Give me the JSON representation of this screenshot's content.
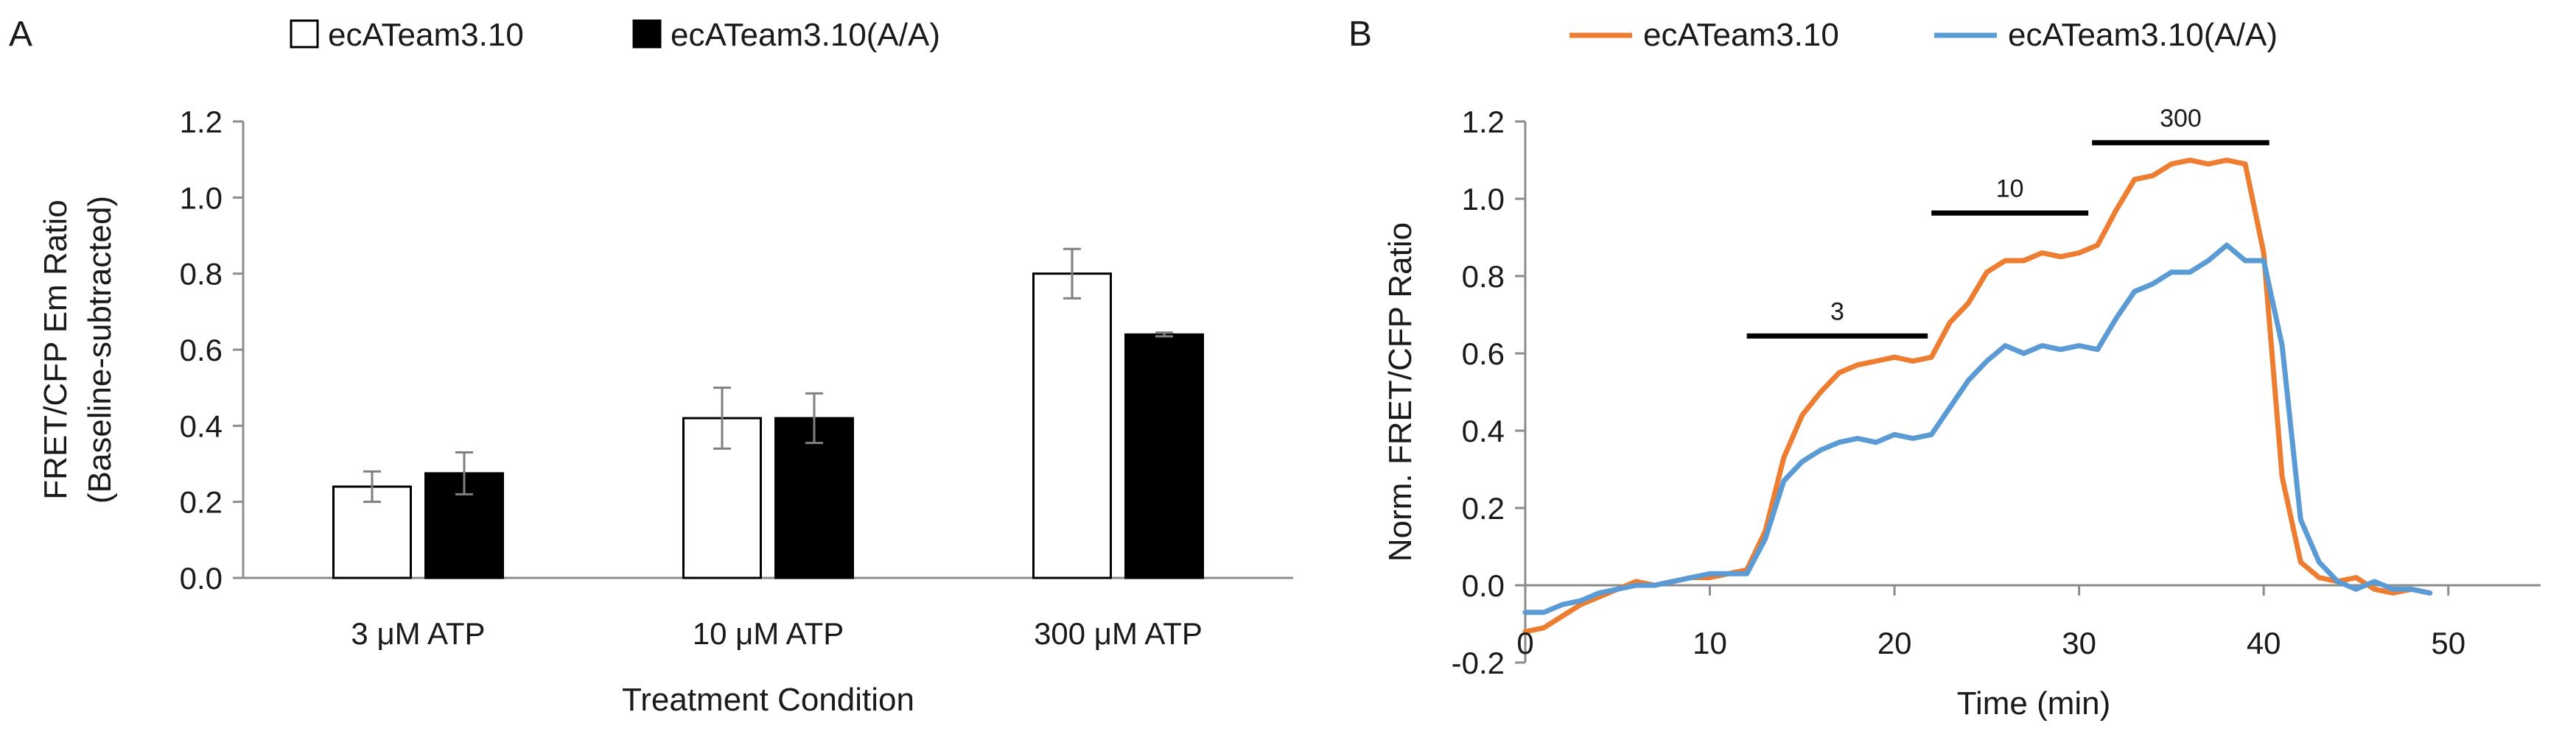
{
  "panels": {
    "a_label": "A",
    "b_label": "B"
  },
  "chart_data": [
    {
      "type": "bar",
      "categories": [
        "3 μM ATP",
        "10 μM ATP",
        "300 μM ATP"
      ],
      "series": [
        {
          "name": "ecATeam3.10",
          "values": [
            0.24,
            0.42,
            0.8
          ],
          "errors": [
            0.04,
            0.08,
            0.065
          ],
          "fill": "#ffffff",
          "stroke": "#000000"
        },
        {
          "name": "ecATeam3.10(A/A)",
          "values": [
            0.275,
            0.42,
            0.64
          ],
          "errors": [
            0.055,
            0.065,
            0.005
          ],
          "fill": "#000000",
          "stroke": "#000000"
        }
      ],
      "xlabel": "Treatment Condition",
      "ylabel_line1": "FRET/CFP Em Ratio",
      "ylabel_line2": "(Baseline-subtracted)",
      "ylim": [
        0,
        1.2
      ],
      "yticks": [
        "0.0",
        "0.2",
        "0.4",
        "0.6",
        "0.8",
        "1.0",
        "1.2"
      ],
      "legend_position": "top"
    },
    {
      "type": "line",
      "xlabel": "Time (min)",
      "ylabel": "Norm. FRET/CFP Ratio",
      "xlim": [
        0,
        55
      ],
      "ylim": [
        -0.2,
        1.2
      ],
      "xticks": [
        "0",
        "10",
        "20",
        "30",
        "40",
        "50"
      ],
      "yticks": [
        "-0.2",
        "0.0",
        "0.2",
        "0.4",
        "0.6",
        "0.8",
        "1.0",
        "1.2"
      ],
      "legend_position": "top",
      "series": [
        {
          "name": "ecATeam3.10",
          "color": "#ED7D31",
          "x": [
            0,
            1,
            2,
            3,
            4,
            5,
            6,
            7,
            8,
            9,
            10,
            11,
            12,
            13,
            14,
            15,
            16,
            17,
            18,
            19,
            20,
            21,
            22,
            23,
            24,
            25,
            26,
            27,
            28,
            29,
            30,
            31,
            32,
            33,
            34,
            35,
            36,
            37,
            38,
            39,
            40,
            41,
            42,
            43,
            44,
            45,
            46,
            47,
            48,
            49
          ],
          "y": [
            -0.12,
            -0.11,
            -0.08,
            -0.05,
            -0.03,
            -0.01,
            0.01,
            0.0,
            0.01,
            0.02,
            0.02,
            0.03,
            0.04,
            0.14,
            0.33,
            0.44,
            0.5,
            0.55,
            0.57,
            0.58,
            0.59,
            0.58,
            0.59,
            0.68,
            0.73,
            0.81,
            0.84,
            0.84,
            0.86,
            0.85,
            0.86,
            0.88,
            0.97,
            1.05,
            1.06,
            1.09,
            1.1,
            1.09,
            1.1,
            1.09,
            0.86,
            0.28,
            0.06,
            0.02,
            0.01,
            0.02,
            -0.01,
            -0.02,
            -0.01,
            -0.02
          ]
        },
        {
          "name": "ecATeam3.10(A/A)",
          "color": "#5B9BD5",
          "x": [
            0,
            1,
            2,
            3,
            4,
            5,
            6,
            7,
            8,
            9,
            10,
            11,
            12,
            13,
            14,
            15,
            16,
            17,
            18,
            19,
            20,
            21,
            22,
            23,
            24,
            25,
            26,
            27,
            28,
            29,
            30,
            31,
            32,
            33,
            34,
            35,
            36,
            37,
            38,
            39,
            40,
            41,
            42,
            43,
            44,
            45,
            46,
            47,
            48,
            49
          ],
          "y": [
            -0.07,
            -0.07,
            -0.05,
            -0.04,
            -0.02,
            -0.01,
            0.0,
            0.0,
            0.01,
            0.02,
            0.03,
            0.03,
            0.03,
            0.12,
            0.27,
            0.32,
            0.35,
            0.37,
            0.38,
            0.37,
            0.39,
            0.38,
            0.39,
            0.46,
            0.53,
            0.58,
            0.62,
            0.6,
            0.62,
            0.61,
            0.62,
            0.61,
            0.69,
            0.76,
            0.78,
            0.81,
            0.81,
            0.84,
            0.88,
            0.84,
            0.84,
            0.62,
            0.17,
            0.06,
            0.01,
            -0.01,
            0.01,
            -0.01,
            -0.01,
            -0.02
          ]
        }
      ],
      "annotations": [
        {
          "label": "3",
          "x_start": 12,
          "x_end": 21.8,
          "y": 0.645
        },
        {
          "label": "10",
          "x_start": 22,
          "x_end": 30.5,
          "y": 0.963
        },
        {
          "label": "300",
          "x_start": 30.7,
          "x_end": 40.3,
          "y": 1.145
        }
      ]
    }
  ]
}
